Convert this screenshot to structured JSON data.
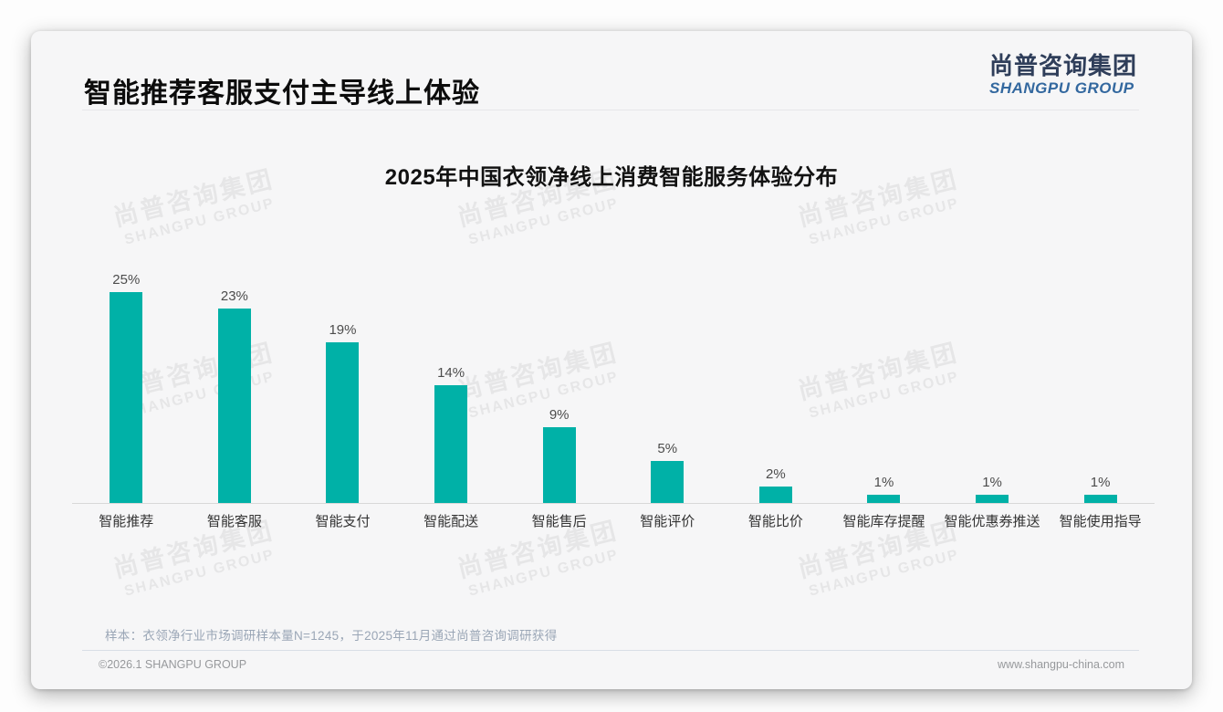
{
  "page": {
    "slide_title": "智能推荐客服支付主导线上体验",
    "logo": {
      "zh": "尚普咨询集团",
      "en": "SHANGPU GROUP"
    },
    "watermark": {
      "zh": "尚普咨询集团",
      "en": "SHANGPU GROUP"
    },
    "footnote": "样本：衣领净行业市场调研样本量N=1245，于2025年11月通过尚普咨询调研获得",
    "footer_left": "©2026.1 SHANGPU GROUP",
    "footer_right": "www.shangpu-china.com",
    "colors": {
      "bar": "#00b1a7",
      "logo_zh": "#2f3e5a",
      "logo_en": "#33689f",
      "slide_background": "#f6f6f7"
    }
  },
  "chart_data": {
    "type": "bar",
    "title": "2025年中国衣领净线上消费智能服务体验分布",
    "categories": [
      "智能推荐",
      "智能客服",
      "智能支付",
      "智能配送",
      "智能售后",
      "智能评价",
      "智能比价",
      "智能库存提醒",
      "智能优惠券推送",
      "智能使用指导"
    ],
    "values": [
      25,
      23,
      19,
      14,
      9,
      5,
      2,
      1,
      1,
      1
    ],
    "unit": "%",
    "bar_color": "#00b1a7",
    "xlabel": "",
    "ylabel": "",
    "ylim": [
      0,
      27
    ],
    "grid": false,
    "legend": false,
    "value_labels": [
      "25%",
      "23%",
      "19%",
      "14%",
      "9%",
      "5%",
      "2%",
      "1%",
      "1%",
      "1%"
    ]
  }
}
